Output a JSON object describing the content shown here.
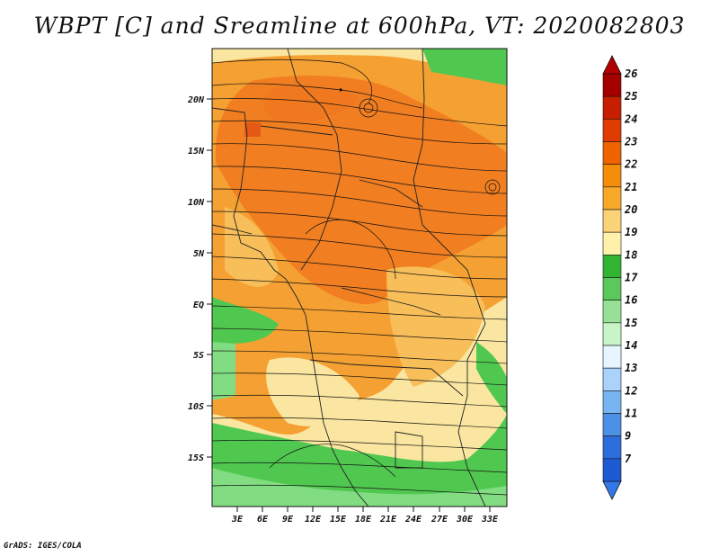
{
  "title": "WBPT [C] and Sreamline at 600hPa, VT: 2020082803",
  "footer": "GrADS: IGES/COLA",
  "map": {
    "lat_labels": [
      "20N",
      "15N",
      "10N",
      "5N",
      "EQ",
      "5S",
      "10S",
      "15S"
    ],
    "lon_labels": [
      "3E",
      "6E",
      "9E",
      "12E",
      "15E",
      "18E",
      "21E",
      "24E",
      "27E",
      "30E",
      "33E"
    ]
  },
  "colorbar": {
    "levels": [
      "26",
      "25",
      "24",
      "23",
      "22",
      "21",
      "20",
      "19",
      "18",
      "17",
      "16",
      "15",
      "14",
      "13",
      "12",
      "11",
      "9",
      "7"
    ],
    "colors": [
      "#a50000",
      "#c81e00",
      "#e13c00",
      "#f06400",
      "#f58c0a",
      "#f7a828",
      "#fad278",
      "#fff0aa",
      "#32b432",
      "#5ac85a",
      "#96e196",
      "#c8f5c8",
      "#e6f5ff",
      "#aad2fa",
      "#78b4f0",
      "#4b91e6",
      "#2d6edc",
      "#1e5ad2"
    ],
    "top_arrow_color": "#b40000",
    "bottom_arrow_color": "#3278e6"
  },
  "palette": {
    "orange_dark": "#f0781e",
    "orange": "#f5a032",
    "orange_light": "#f8be5a",
    "yellow": "#fae6a0",
    "green": "#50c850",
    "green_light": "#82dc82"
  }
}
